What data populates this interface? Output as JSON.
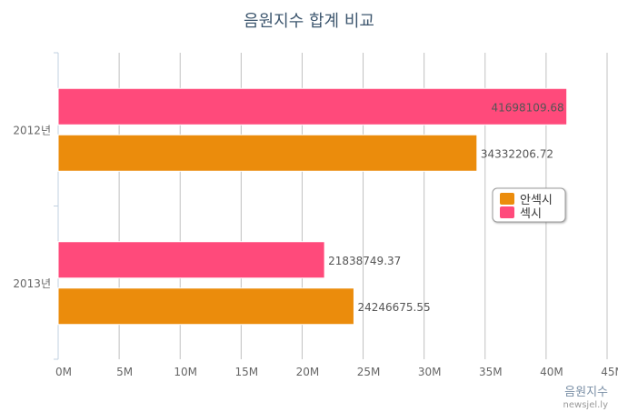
{
  "chart_data": {
    "type": "bar",
    "orientation": "horizontal",
    "title": "음원지수 합계 비교",
    "categories": [
      "2012년",
      "2013년"
    ],
    "series": [
      {
        "name": "섹시",
        "color": "#ff4a7b",
        "values": [
          41698109.68,
          21838749.37
        ]
      },
      {
        "name": "안섹시",
        "color": "#eb8c0c",
        "values": [
          34332206.72,
          24246675.55
        ]
      }
    ],
    "data_labels": [
      [
        "41698109.68",
        "21838749.37"
      ],
      [
        "34332206.72",
        "24246675.55"
      ]
    ],
    "xlim": [
      0,
      45000000
    ],
    "x_ticks": [
      "0M",
      "5M",
      "10M",
      "15M",
      "20M",
      "25M",
      "30M",
      "35M",
      "40M",
      "45M"
    ],
    "grid": true,
    "legend": {
      "placement": "right",
      "items": [
        "안섹시",
        "섹시"
      ]
    },
    "credits": {
      "line1": "음원지수",
      "line2": "newsjel.ly"
    }
  }
}
